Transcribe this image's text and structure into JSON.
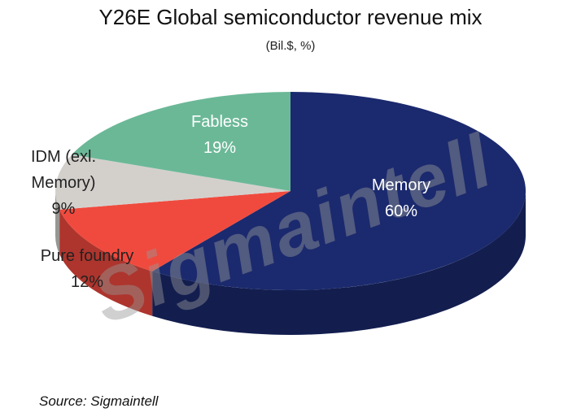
{
  "chart_data": {
    "type": "pie3d",
    "title": "Y26E Global semiconductor revenue mix",
    "subtitle": "(Bil.$, %)",
    "categories": [
      "Memory",
      "Pure foundry",
      "IDM (exl. Memory)",
      "Fabless"
    ],
    "values": [
      60,
      12,
      9,
      19
    ],
    "value_labels": [
      "60%",
      "12%",
      "9%",
      "19%"
    ],
    "colors": [
      "#1b2a6e",
      "#f04a3e",
      "#d3d0cc",
      "#6bb897"
    ],
    "source": "Source: Sigmaintell",
    "watermark": "Sigmaintell"
  }
}
